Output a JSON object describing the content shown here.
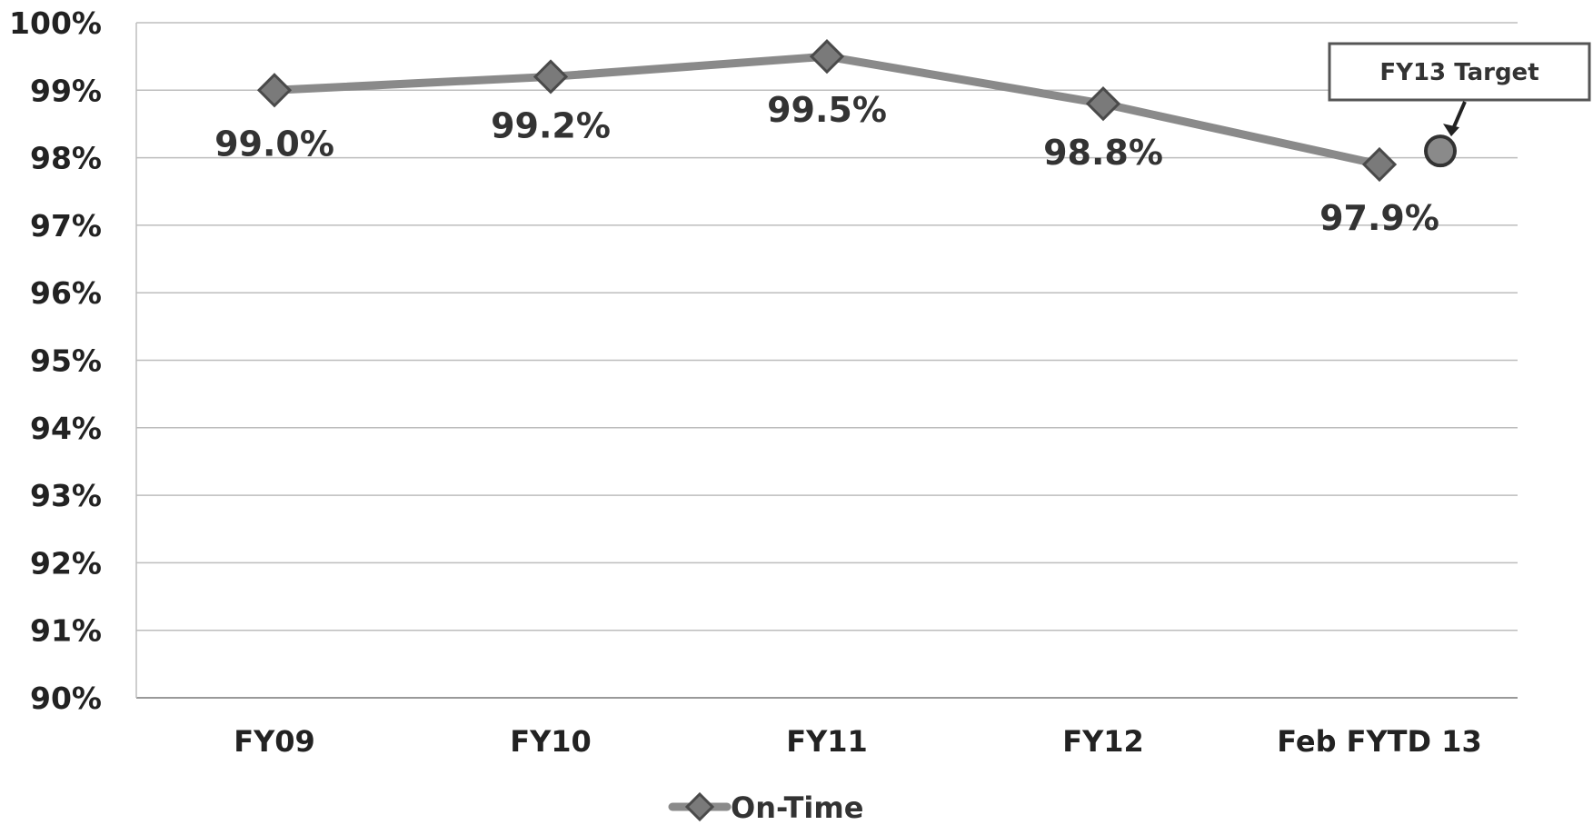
{
  "chart_data": {
    "type": "line",
    "categories": [
      "FY09",
      "FY10",
      "FY11",
      "FY12",
      "Feb FYTD 13"
    ],
    "series": [
      {
        "name": "On-Time",
        "values": [
          99.0,
          99.2,
          99.5,
          98.8,
          97.9
        ],
        "labels": [
          "99.0%",
          "99.2%",
          "99.5%",
          "98.8%",
          "97.9%"
        ],
        "color": "#8a8a8a",
        "marker": "diamond"
      }
    ],
    "target": {
      "label": "FY13 Target",
      "value": 98.1
    },
    "ylim": [
      90,
      100
    ],
    "yticks": [
      "90%",
      "91%",
      "92%",
      "93%",
      "94%",
      "95%",
      "96%",
      "97%",
      "98%",
      "99%",
      "100%"
    ],
    "grid": true,
    "legend": "bottom"
  }
}
